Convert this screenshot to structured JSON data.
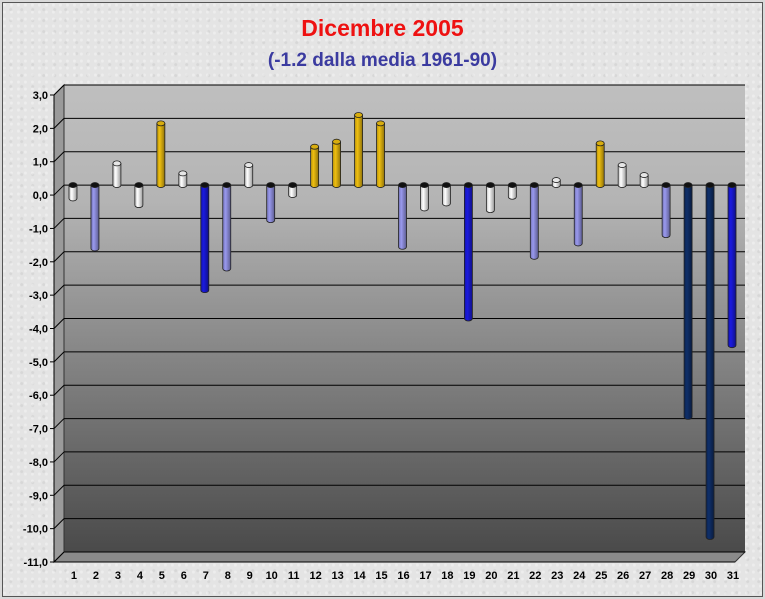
{
  "chart_data": {
    "type": "bar",
    "title": "Dicembre 2005",
    "subtitle": "(-1.2 dalla media 1961-90)",
    "xlabel": "",
    "ylabel": "",
    "ylim": [
      -11,
      3
    ],
    "ytick_step": 1,
    "grid": true,
    "categories": [
      "1",
      "2",
      "3",
      "4",
      "5",
      "6",
      "7",
      "8",
      "9",
      "10",
      "11",
      "12",
      "13",
      "14",
      "15",
      "16",
      "17",
      "18",
      "19",
      "20",
      "21",
      "22",
      "23",
      "24",
      "25",
      "26",
      "27",
      "28",
      "29",
      "30",
      "31"
    ],
    "values": [
      -0.4,
      -1.9,
      0.65,
      -0.6,
      1.85,
      0.35,
      -3.15,
      -2.5,
      0.6,
      -1.05,
      -0.3,
      1.15,
      1.3,
      2.1,
      1.85,
      -1.85,
      -0.7,
      -0.55,
      -4.0,
      -0.75,
      -0.35,
      -2.15,
      0.15,
      -1.75,
      1.25,
      0.6,
      0.3,
      -1.5,
      -6.95,
      -10.55,
      -4.8
    ],
    "colors": {
      "above_strong": "#f0c010",
      "above_light": "#ffffff",
      "below_light_white": "#ffffff",
      "below_mid": "#9999ee",
      "below_strong": "#1a1ae0",
      "below_extreme": "#0f2f6a"
    }
  }
}
